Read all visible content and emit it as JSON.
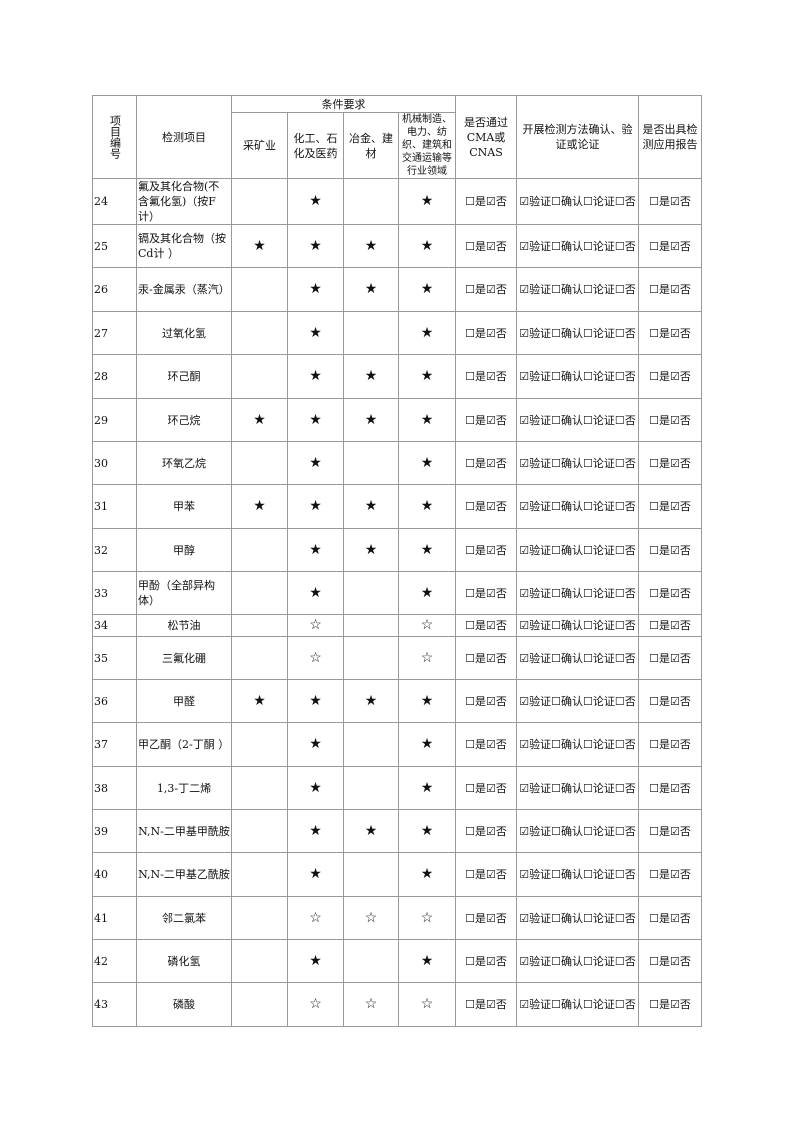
{
  "header": {
    "id": "项目编号",
    "item": "检测项目",
    "conditions": "条件要求",
    "mining": "采矿业",
    "chem": "化工、石化及医药",
    "metal": "冶金、建材",
    "mach": "机械制造、电力、纺织、建筑和交通运输等行业领域",
    "cma": "是否通过CMA或CNAS",
    "method": "开展检测方法确认、验证或论证",
    "report": "是否出具检测应用报告"
  },
  "checks": {
    "cma": "☐是☑否",
    "method": "☑验证☐确认☐论证☐否",
    "report": "☐是☑否"
  },
  "rows": [
    {
      "id": "24",
      "name": "氟及其化合物(不含氟化氢)（按F计）",
      "mining": "",
      "chem": "★",
      "metal": "",
      "mach": "★",
      "left": true,
      "h": 44
    },
    {
      "id": "25",
      "name": "镉及其化合物（按Cd计 ）",
      "mining": "★",
      "chem": "★",
      "metal": "★",
      "mach": "★",
      "left": true,
      "h": 43
    },
    {
      "id": "26",
      "name": "汞-金属汞（蒸汽）",
      "mining": "",
      "chem": "★",
      "metal": "★",
      "mach": "★",
      "left": true,
      "h": 44
    },
    {
      "id": "27",
      "name": "过氧化氢",
      "mining": "",
      "chem": "★",
      "metal": "",
      "mach": "★",
      "h": 43
    },
    {
      "id": "28",
      "name": "环己酮",
      "mining": "",
      "chem": "★",
      "metal": "★",
      "mach": "★",
      "h": 44
    },
    {
      "id": "29",
      "name": "环己烷",
      "mining": "★",
      "chem": "★",
      "metal": "★",
      "mach": "★",
      "h": 43
    },
    {
      "id": "30",
      "name": "环氧乙烷",
      "mining": "",
      "chem": "★",
      "metal": "",
      "mach": "★",
      "h": 43
    },
    {
      "id": "31",
      "name": "甲苯",
      "mining": "★",
      "chem": "★",
      "metal": "★",
      "mach": "★",
      "h": 44
    },
    {
      "id": "32",
      "name": "甲醇",
      "mining": "",
      "chem": "★",
      "metal": "★",
      "mach": "★",
      "h": 43
    },
    {
      "id": "33",
      "name": "甲酚（全部异构体）",
      "mining": "",
      "chem": "★",
      "metal": "",
      "mach": "★",
      "left": true,
      "h": 43
    },
    {
      "id": "34",
      "name": "松节油",
      "mining": "",
      "chem": "☆",
      "metal": "",
      "mach": "☆",
      "h": 22
    },
    {
      "id": "35",
      "name": "三氟化硼",
      "mining": "",
      "chem": "☆",
      "metal": "",
      "mach": "☆",
      "h": 43
    },
    {
      "id": "36",
      "name": "甲醛",
      "mining": "★",
      "chem": "★",
      "metal": "★",
      "mach": "★",
      "h": 43
    },
    {
      "id": "37",
      "name": "甲乙酮（2-丁酮 ）",
      "mining": "",
      "chem": "★",
      "metal": "",
      "mach": "★",
      "left": true,
      "h": 44
    },
    {
      "id": "38",
      "name": "1,3-丁二烯",
      "mining": "",
      "chem": "★",
      "metal": "",
      "mach": "★",
      "h": 43
    },
    {
      "id": "39",
      "name": "N,N-二甲基甲酰胺",
      "mining": "",
      "chem": "★",
      "metal": "★",
      "mach": "★",
      "h": 43
    },
    {
      "id": "40",
      "name": "N,N-二甲基乙酰胺",
      "mining": "",
      "chem": "★",
      "metal": "",
      "mach": "★",
      "h": 44
    },
    {
      "id": "41",
      "name": "邻二氯苯",
      "mining": "",
      "chem": "☆",
      "metal": "☆",
      "mach": "☆",
      "h": 43
    },
    {
      "id": "42",
      "name": "磷化氢",
      "mining": "",
      "chem": "★",
      "metal": "",
      "mach": "★",
      "h": 43
    },
    {
      "id": "43",
      "name": "磷酸",
      "mining": "",
      "chem": "☆",
      "metal": "☆",
      "mach": "☆",
      "h": 44
    }
  ]
}
